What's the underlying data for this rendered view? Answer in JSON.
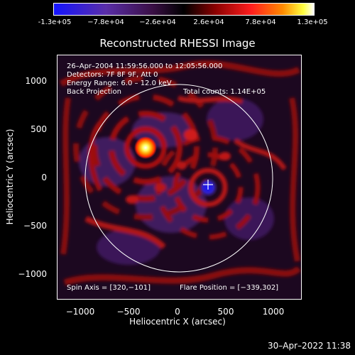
{
  "colorbar": {
    "ticks": [
      "-1.3e+05",
      "−7.8e+04",
      "−2.6e+04",
      "2.6e+04",
      "7.8e+04",
      "1.3e+05"
    ]
  },
  "image": {
    "title": "Reconstructed RHESSI Image",
    "info": {
      "time": "26–Apr–2004 11:59:56.000 to 12:05:56.000",
      "detectors": "Detectors: 7F 8F 9F, Att 0",
      "energy": "Energy Range: 6.0 – 12.0 keV",
      "method": "Back Projection",
      "counts": "Total counts: 1.14E+05"
    },
    "spin_axis": "Spin Axis = [320,−101]",
    "flare_position": "Flare Position = [−339,302]"
  },
  "axes": {
    "xlabel": "Heliocentric X (arcsec)",
    "ylabel": "Heliocentric Y (arcsec)",
    "xticks": [
      "−1000",
      "−500",
      "0",
      "500",
      "1000"
    ],
    "yticks": [
      "1000",
      "500",
      "0",
      "−500",
      "−1000"
    ]
  },
  "timestamp": "30–Apr–2022 11:38"
}
